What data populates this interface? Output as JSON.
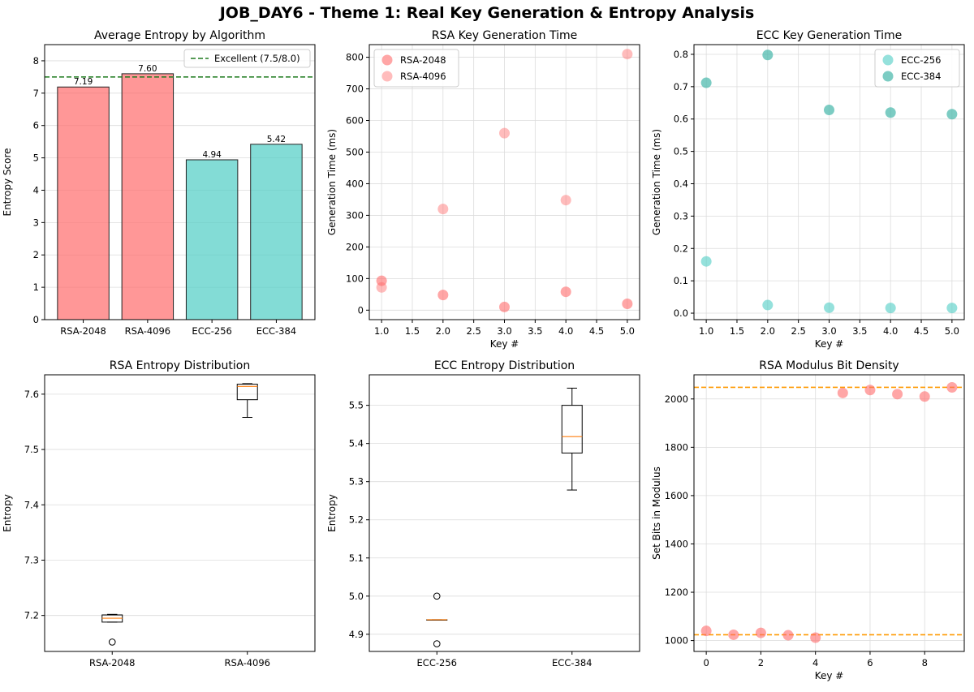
{
  "figure": {
    "suptitle": "JOB_DAY6 - Theme 1: Real Key Generation & Entropy Analysis"
  },
  "colors": {
    "rsa": "#ff6b6b",
    "ecc": "#4ecdc4",
    "threshold_green": "#1f7a1f",
    "threshold_orange": "#ff9900",
    "median": "#ff7f0e"
  },
  "chart_data": [
    {
      "id": "avg-entropy",
      "type": "bar",
      "title": "Average Entropy by Algorithm",
      "xlabel": "",
      "ylabel": "Entropy Score",
      "categories": [
        "RSA-2048",
        "RSA-4096",
        "ECC-256",
        "ECC-384"
      ],
      "values": [
        7.19,
        7.6,
        4.94,
        5.42
      ],
      "value_labels": [
        "7.19",
        "7.60",
        "4.94",
        "5.42"
      ],
      "bar_colors": [
        "rsa",
        "rsa",
        "ecc",
        "ecc"
      ],
      "ylim": [
        0,
        8.5
      ],
      "yticks": [
        0,
        1,
        2,
        3,
        4,
        5,
        6,
        7,
        8
      ],
      "hline": {
        "y": 7.5,
        "label": "Excellent (7.5/8.0)"
      },
      "legend": "top-right"
    },
    {
      "id": "rsa-time",
      "type": "scatter",
      "title": "RSA Key Generation Time",
      "xlabel": "Key #",
      "ylabel": "Generation Time (ms)",
      "xlim": [
        0.8,
        5.2
      ],
      "ylim": [
        -30,
        840
      ],
      "xticks": [
        1.0,
        1.5,
        2.0,
        2.5,
        3.0,
        3.5,
        4.0,
        4.5,
        5.0
      ],
      "xtick_labels": [
        "1.0",
        "1.5",
        "2.0",
        "2.5",
        "3.0",
        "3.5",
        "4.0",
        "4.5",
        "5.0"
      ],
      "yticks": [
        0,
        100,
        200,
        300,
        400,
        500,
        600,
        700,
        800
      ],
      "series": [
        {
          "name": "RSA-2048",
          "x": [
            1,
            2,
            3,
            4,
            5
          ],
          "y": [
            93,
            48,
            10,
            58,
            20
          ],
          "alpha": 0.6
        },
        {
          "name": "RSA-4096",
          "x": [
            1,
            2,
            3,
            4,
            5
          ],
          "y": [
            72,
            320,
            560,
            348,
            810
          ],
          "alpha": 0.45
        }
      ],
      "legend": "top-left"
    },
    {
      "id": "ecc-time",
      "type": "scatter",
      "title": "ECC Key Generation Time",
      "xlabel": "Key #",
      "ylabel": "Generation Time (ms)",
      "xlim": [
        0.8,
        5.2
      ],
      "ylim": [
        -0.02,
        0.83
      ],
      "xticks": [
        1.0,
        1.5,
        2.0,
        2.5,
        3.0,
        3.5,
        4.0,
        4.5,
        5.0
      ],
      "xtick_labels": [
        "1.0",
        "1.5",
        "2.0",
        "2.5",
        "3.0",
        "3.5",
        "4.0",
        "4.5",
        "5.0"
      ],
      "yticks": [
        0.0,
        0.1,
        0.2,
        0.3,
        0.4,
        0.5,
        0.6,
        0.7,
        0.8
      ],
      "ytick_labels": [
        "0.0",
        "0.1",
        "0.2",
        "0.3",
        "0.4",
        "0.5",
        "0.6",
        "0.7",
        "0.8"
      ],
      "series": [
        {
          "name": "ECC-256",
          "x": [
            1,
            2,
            3,
            4,
            5
          ],
          "y": [
            0.16,
            0.025,
            0.017,
            0.016,
            0.016
          ],
          "color": "#4ecdc4",
          "alpha": 0.6
        },
        {
          "name": "ECC-384",
          "x": [
            1,
            2,
            3,
            4,
            5
          ],
          "y": [
            0.712,
            0.798,
            0.628,
            0.62,
            0.615
          ],
          "color": "#45b7aa",
          "alpha": 0.7
        }
      ],
      "legend": "top-right"
    },
    {
      "id": "rsa-entropy-box",
      "type": "box",
      "title": "RSA Entropy Distribution",
      "xlabel": "",
      "ylabel": "Entropy",
      "categories": [
        "RSA-2048",
        "RSA-4096"
      ],
      "ylim": [
        7.135,
        7.635
      ],
      "yticks": [
        7.2,
        7.3,
        7.4,
        7.5,
        7.6
      ],
      "ytick_labels": [
        "7.2",
        "7.3",
        "7.4",
        "7.5",
        "7.6"
      ],
      "boxes": [
        {
          "q1": 7.188,
          "median": 7.195,
          "q3": 7.201,
          "whisker_low": 7.188,
          "whisker_high": 7.202,
          "outliers": [
            7.152
          ]
        },
        {
          "q1": 7.59,
          "median": 7.614,
          "q3": 7.618,
          "whisker_low": 7.558,
          "whisker_high": 7.619,
          "outliers": []
        }
      ]
    },
    {
      "id": "ecc-entropy-box",
      "type": "box",
      "title": "ECC Entropy Distribution",
      "xlabel": "",
      "ylabel": "Entropy",
      "categories": [
        "ECC-256",
        "ECC-384"
      ],
      "ylim": [
        4.855,
        5.58
      ],
      "yticks": [
        4.9,
        5.0,
        5.1,
        5.2,
        5.3,
        5.4,
        5.5
      ],
      "ytick_labels": [
        "4.9",
        "5.0",
        "5.1",
        "5.2",
        "5.3",
        "5.4",
        "5.5"
      ],
      "boxes": [
        {
          "q1": 4.938,
          "median": 4.938,
          "q3": 4.938,
          "whisker_low": 4.938,
          "whisker_high": 4.938,
          "outliers": [
            5.0,
            4.875
          ]
        },
        {
          "q1": 5.375,
          "median": 5.418,
          "q3": 5.5,
          "whisker_low": 5.278,
          "whisker_high": 5.545,
          "outliers": []
        }
      ]
    },
    {
      "id": "modulus-density",
      "type": "scatter",
      "title": "RSA Modulus Bit Density",
      "xlabel": "Key #",
      "ylabel": "Set Bits in Modulus",
      "xlim": [
        -0.45,
        9.45
      ],
      "ylim": [
        955,
        2100
      ],
      "xticks": [
        0,
        2,
        4,
        6,
        8
      ],
      "yticks": [
        1000,
        1200,
        1400,
        1600,
        1800,
        2000
      ],
      "hlines": [
        1024,
        2048
      ],
      "series": [
        {
          "name": "RSA",
          "x": [
            0,
            1,
            2,
            3,
            4,
            5,
            6,
            7,
            8,
            9
          ],
          "y": [
            1040,
            1024,
            1032,
            1022,
            1012,
            2025,
            2037,
            2020,
            2010,
            2048
          ],
          "alpha": 0.6
        }
      ]
    }
  ]
}
